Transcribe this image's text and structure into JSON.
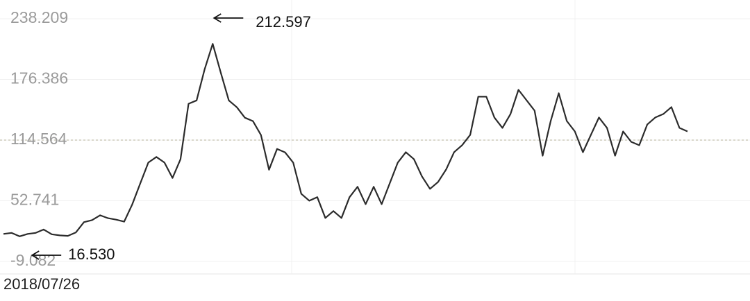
{
  "chart_data": {
    "type": "line",
    "annotations": [
      "212.597",
      "16.530"
    ],
    "categories": [
      "2018/07/26",
      null,
      null,
      null,
      null,
      null,
      null,
      null,
      null,
      null,
      null,
      null,
      null,
      null,
      null,
      null,
      null,
      null,
      null,
      null,
      null,
      null,
      null,
      null,
      null,
      null,
      null,
      null,
      null,
      null,
      null,
      null,
      null,
      null,
      null,
      null,
      null,
      null,
      null,
      null,
      null,
      null,
      null,
      null,
      null,
      null,
      null,
      null,
      null,
      null,
      null,
      null,
      null,
      null,
      null,
      null,
      null,
      null,
      null,
      null,
      null,
      null,
      null,
      null,
      null,
      null,
      null,
      null,
      null,
      null,
      null,
      null,
      null,
      null,
      null,
      null,
      null,
      null,
      null,
      null,
      null,
      null,
      null,
      null,
      null,
      null
    ],
    "values": [
      19,
      20,
      16.53,
      19,
      20,
      23.5,
      18.6,
      17.5,
      17,
      20.5,
      31,
      33,
      38,
      35,
      33.5,
      31.5,
      49,
      70.5,
      91.7,
      97.4,
      91.7,
      76,
      95,
      151.6,
      155,
      186.8,
      212.597,
      183.3,
      155,
      148,
      137.4,
      133.9,
      119.7,
      84.4,
      105.6,
      102,
      91.7,
      59.9,
      52.8,
      56.4,
      35.2,
      42.3,
      35.2,
      56.4,
      67,
      49.3,
      67,
      49.3,
      70.5,
      91.7,
      102.3,
      95.2,
      77.6,
      64.9,
      71.9,
      84.6,
      102.3,
      109.4,
      119.9,
      158.8,
      158.8,
      137.6,
      127,
      141.1,
      165.8,
      155.2,
      144.6,
      98.7,
      134,
      162.3,
      134,
      123.4,
      102.2,
      119.9,
      137.6,
      127,
      98.7,
      123.4,
      112.8,
      109.3,
      130.5,
      137.6,
      141.1,
      148.2,
      127,
      123.4
    ],
    "color": "#2b2b2b",
    "ylim": [
      -9.082,
      238.209
    ],
    "yticks": [
      -9.082,
      52.741,
      114.564,
      176.386,
      238.209
    ],
    "reference_line": 114.564,
    "grid": true
  }
}
